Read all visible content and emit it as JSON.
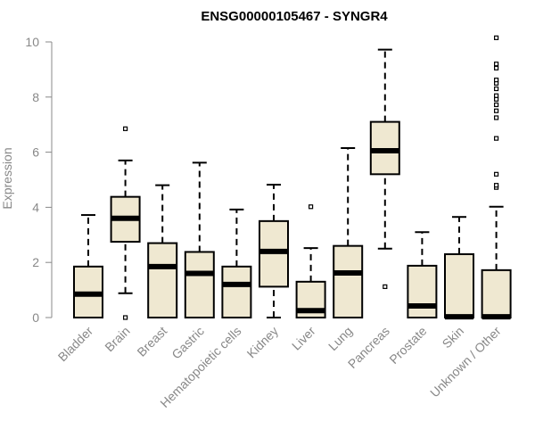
{
  "chart_data": {
    "type": "boxplot",
    "title": "ENSG00000105467 - SYNGR4",
    "xlabel": "",
    "ylabel": "Expression",
    "ylim": [
      0,
      10.3
    ],
    "yticks": [
      0,
      2,
      4,
      6,
      8,
      10
    ],
    "categories": [
      "Bladder",
      "Brain",
      "Breast",
      "Gastric",
      "Hematopoietic cells",
      "Kidney",
      "Liver",
      "Lung",
      "Pancreas",
      "Prostate",
      "Skin",
      "Unknown / Other"
    ],
    "boxes": [
      {
        "category": "Bladder",
        "whisker_low": 0,
        "q1": 0,
        "median": 0.85,
        "q3": 1.85,
        "whisker_high": 3.72,
        "outliers": []
      },
      {
        "category": "Brain",
        "whisker_low": 0.88,
        "q1": 2.75,
        "median": 3.6,
        "q3": 4.38,
        "whisker_high": 5.7,
        "outliers": [
          6.85,
          0
        ]
      },
      {
        "category": "Breast",
        "whisker_low": 0,
        "q1": 0,
        "median": 1.85,
        "q3": 2.7,
        "whisker_high": 4.8,
        "outliers": []
      },
      {
        "category": "Gastric",
        "whisker_low": 0,
        "q1": 0,
        "median": 1.6,
        "q3": 2.38,
        "whisker_high": 5.62,
        "outliers": []
      },
      {
        "category": "Hematopoietic cells",
        "whisker_low": 0,
        "q1": 0,
        "median": 1.2,
        "q3": 1.85,
        "whisker_high": 3.92,
        "outliers": []
      },
      {
        "category": "Kidney",
        "whisker_low": 0,
        "q1": 1.12,
        "median": 2.4,
        "q3": 3.5,
        "whisker_high": 4.82,
        "outliers": []
      },
      {
        "category": "Liver",
        "whisker_low": 0,
        "q1": 0,
        "median": 0.25,
        "q3": 1.3,
        "whisker_high": 2.52,
        "outliers": [
          4.02
        ]
      },
      {
        "category": "Lung",
        "whisker_low": 0,
        "q1": 0,
        "median": 1.62,
        "q3": 2.6,
        "whisker_high": 6.15,
        "outliers": []
      },
      {
        "category": "Pancreas",
        "whisker_low": 2.5,
        "q1": 5.2,
        "median": 6.05,
        "q3": 7.1,
        "whisker_high": 9.72,
        "outliers": [
          1.12
        ]
      },
      {
        "category": "Prostate",
        "whisker_low": 0,
        "q1": 0,
        "median": 0.42,
        "q3": 1.88,
        "whisker_high": 3.1,
        "outliers": []
      },
      {
        "category": "Skin",
        "whisker_low": 0,
        "q1": 0,
        "median": 0.03,
        "q3": 2.3,
        "whisker_high": 3.65,
        "outliers": []
      },
      {
        "category": "Unknown / Other",
        "whisker_low": 0,
        "q1": 0,
        "median": 0.03,
        "q3": 1.72,
        "whisker_high": 4.02,
        "outliers": [
          4.72,
          4.8,
          5.2,
          6.5,
          7.25,
          7.5,
          7.72,
          7.92,
          8.05,
          8.3,
          8.5,
          8.62,
          9.05,
          9.2,
          10.15
        ]
      }
    ],
    "box_fill": "#efe8d1",
    "box_stroke": "#000000",
    "axis_color": "#888888",
    "grid": false,
    "legend": "none"
  }
}
